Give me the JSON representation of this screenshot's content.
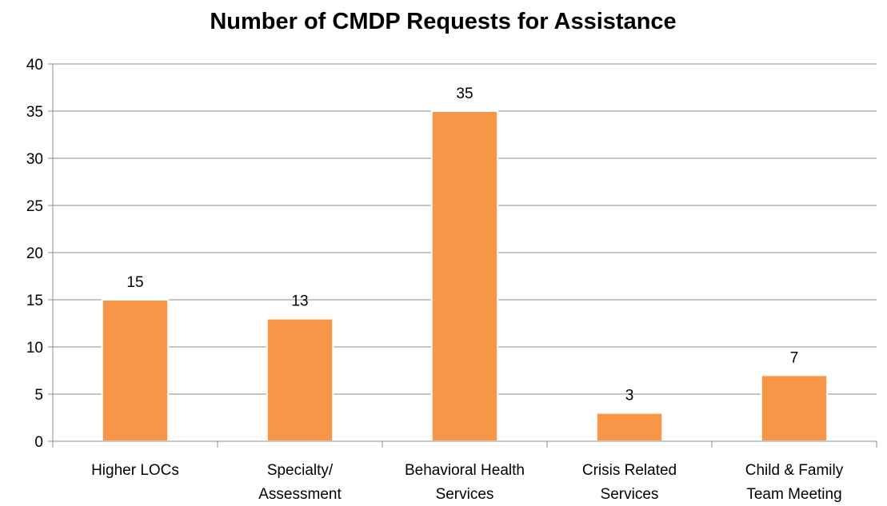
{
  "chart_data": {
    "type": "bar",
    "title": "Number of CMDP Requests for Assistance",
    "categories": [
      [
        "Higher LOCs"
      ],
      [
        "Specialty/",
        "Assessment"
      ],
      [
        "Behavioral Health",
        "Services"
      ],
      [
        "Crisis Related",
        "Services"
      ],
      [
        "Child & Family",
        "Team Meeting"
      ]
    ],
    "values": [
      15,
      13,
      35,
      3,
      7
    ],
    "ylim": [
      0,
      40
    ],
    "yticks": [
      0,
      5,
      10,
      15,
      20,
      25,
      30,
      35,
      40
    ],
    "grid": true,
    "bar_color": "#f79646",
    "data_labels": true
  }
}
